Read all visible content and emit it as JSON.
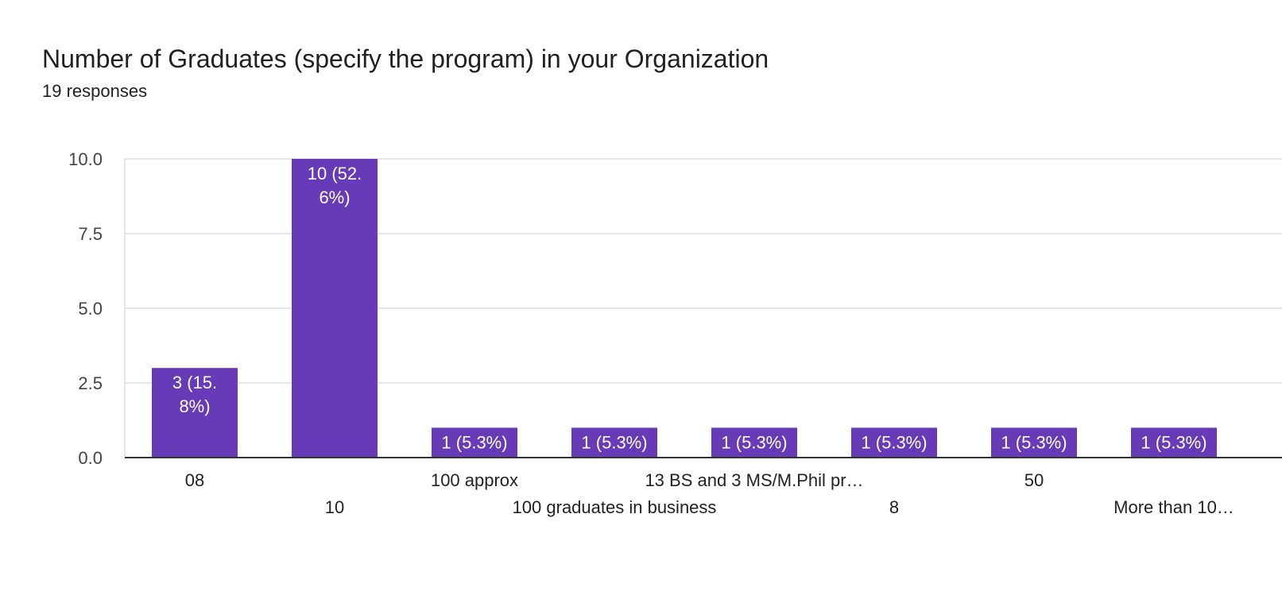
{
  "chart_data": {
    "type": "bar",
    "title": "Number of Graduates (specify the program) in your Organization",
    "subtitle": "19 responses",
    "categories": [
      "08",
      "10",
      "100 approx",
      "100 graduates in business",
      "13 BS and 3 MS/M.Phil pr…",
      "8",
      "50",
      "More than 10…"
    ],
    "values": [
      3,
      10,
      1,
      1,
      1,
      1,
      1,
      1
    ],
    "data_labels": [
      [
        "3 (15.",
        "8%)"
      ],
      [
        "10 (52.",
        "6%)"
      ],
      [
        "1 (5.3%)"
      ],
      [
        "1 (5.3%)"
      ],
      [
        "1 (5.3%)"
      ],
      [
        "1 (5.3%)"
      ],
      [
        "1 (5.3%)"
      ],
      [
        "1 (5.3%)"
      ]
    ],
    "ylim": [
      0,
      10
    ],
    "yticks": [
      "0.0",
      "2.5",
      "5.0",
      "7.5",
      "10.0"
    ],
    "xlabel": "",
    "ylabel": "",
    "grid": true,
    "bar_color": "#673ab7"
  }
}
